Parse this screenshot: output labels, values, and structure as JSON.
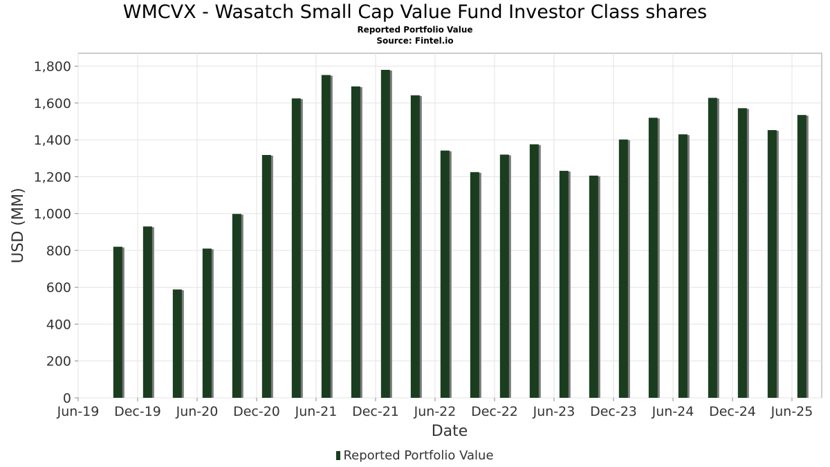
{
  "chart_data": {
    "type": "bar",
    "title": "WMCVX - Wasatch Small Cap Value Fund Investor Class shares",
    "subtitle": "Reported Portfolio Value",
    "source": "Source: Fintel.io",
    "xlabel": "Date",
    "ylabel": "USD (MM)",
    "ylim": [
      0,
      1870
    ],
    "yticks": [
      0,
      200,
      400,
      600,
      800,
      1000,
      1200,
      1400,
      1600,
      1800
    ],
    "ytick_labels": [
      "0",
      "200",
      "400",
      "600",
      "800",
      "1,000",
      "1,200",
      "1,400",
      "1,600",
      "1,800"
    ],
    "xlim": [
      "2019-06",
      "2025-09"
    ],
    "xticks": [
      {
        "date": "2019-06",
        "label": "Jun-19"
      },
      {
        "date": "2019-12",
        "label": "Dec-19"
      },
      {
        "date": "2020-06",
        "label": "Jun-20"
      },
      {
        "date": "2020-12",
        "label": "Dec-20"
      },
      {
        "date": "2021-06",
        "label": "Jun-21"
      },
      {
        "date": "2021-12",
        "label": "Dec-21"
      },
      {
        "date": "2022-06",
        "label": "Jun-22"
      },
      {
        "date": "2022-12",
        "label": "Dec-22"
      },
      {
        "date": "2023-06",
        "label": "Jun-23"
      },
      {
        "date": "2023-12",
        "label": "Dec-23"
      },
      {
        "date": "2024-06",
        "label": "Jun-24"
      },
      {
        "date": "2024-12",
        "label": "Dec-24"
      },
      {
        "date": "2025-06",
        "label": "Jun-25"
      }
    ],
    "grid": true,
    "legend_position": "bottom-center",
    "series": [
      {
        "name": "Reported Portfolio Value",
        "color": "#1a3d1f",
        "x": [
          "2019-10",
          "2020-01",
          "2020-04",
          "2020-07",
          "2020-10",
          "2021-01",
          "2021-04",
          "2021-07",
          "2021-10",
          "2022-01",
          "2022-04",
          "2022-07",
          "2022-10",
          "2023-01",
          "2023-04",
          "2023-07",
          "2023-10",
          "2024-01",
          "2024-04",
          "2024-07",
          "2024-10",
          "2025-01",
          "2025-04",
          "2025-07"
        ],
        "values": [
          820,
          930,
          588,
          810,
          998,
          1318,
          1625,
          1752,
          1690,
          1780,
          1642,
          1342,
          1225,
          1320,
          1376,
          1232,
          1206,
          1402,
          1520,
          1430,
          1628,
          1572,
          1453,
          1535
        ]
      }
    ]
  }
}
